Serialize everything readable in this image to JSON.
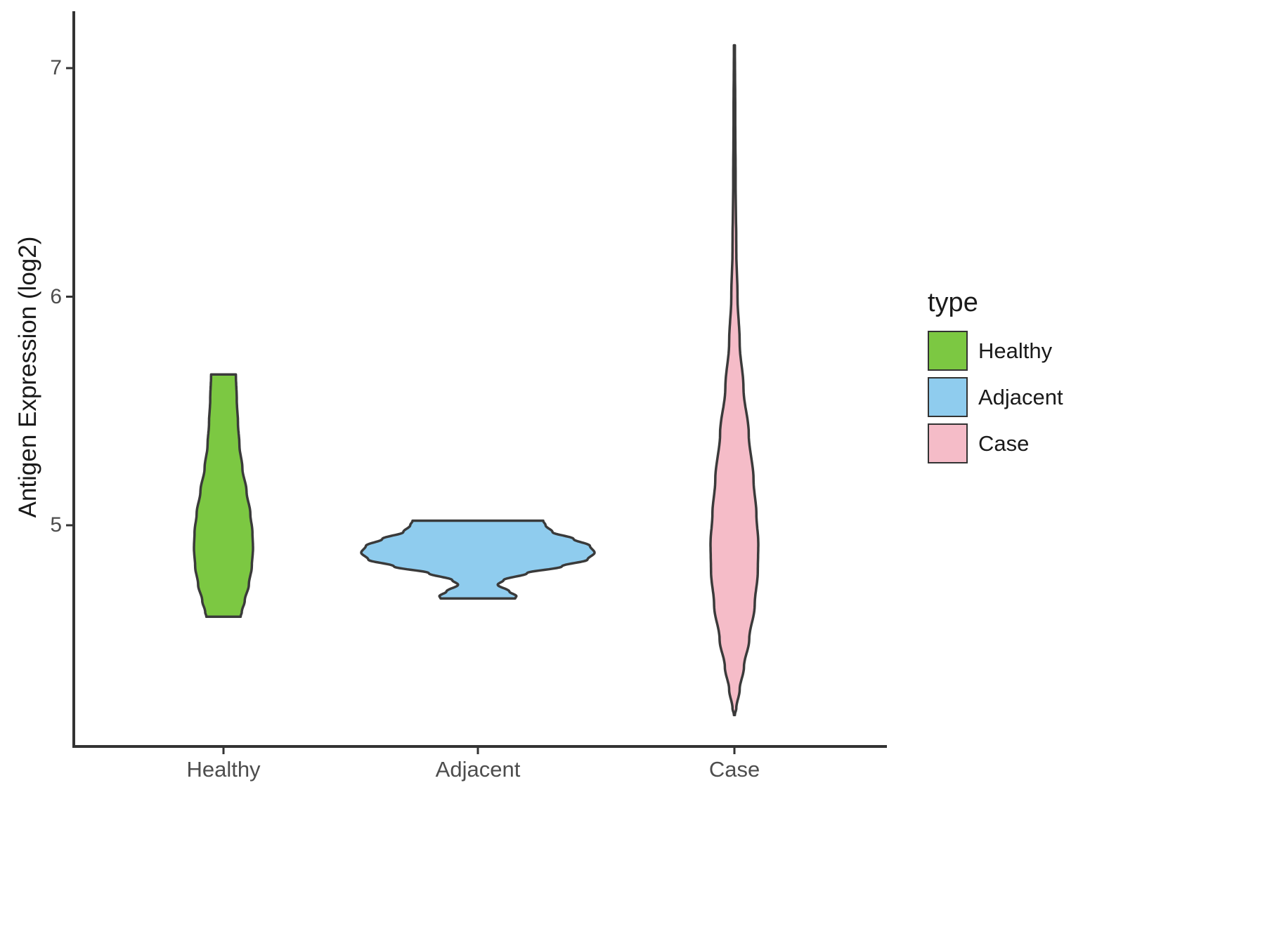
{
  "chart_data": {
    "type": "violin",
    "title": "",
    "xlabel": "",
    "ylabel": "Antigen Expression (log2)",
    "categories": [
      "Healthy",
      "Adjacent",
      "Case"
    ],
    "yticks": [
      7,
      6,
      5
    ],
    "ylim": [
      4.0,
      7.25
    ],
    "grid": "off",
    "axis_color": "#333333",
    "outline_color": "#3A3A3A",
    "legend": {
      "title": "type",
      "position": "right"
    },
    "series": [
      {
        "name": "Healthy",
        "color": "#7CC842",
        "value_range": [
          4.6,
          5.66
        ],
        "flat_ends": true,
        "profile": [
          {
            "v": 5.66,
            "d": 0.42
          },
          {
            "v": 5.55,
            "d": 0.45
          },
          {
            "v": 5.45,
            "d": 0.49
          },
          {
            "v": 5.35,
            "d": 0.54
          },
          {
            "v": 5.25,
            "d": 0.64
          },
          {
            "v": 5.15,
            "d": 0.78
          },
          {
            "v": 5.05,
            "d": 0.91
          },
          {
            "v": 4.97,
            "d": 0.98
          },
          {
            "v": 4.9,
            "d": 1.0
          },
          {
            "v": 4.82,
            "d": 0.96
          },
          {
            "v": 4.74,
            "d": 0.86
          },
          {
            "v": 4.67,
            "d": 0.72
          },
          {
            "v": 4.62,
            "d": 0.62
          },
          {
            "v": 4.6,
            "d": 0.58
          }
        ]
      },
      {
        "name": "Adjacent",
        "color": "#8FCCEE",
        "value_range": [
          4.68,
          5.02
        ],
        "flat_ends": true,
        "profile": [
          {
            "v": 5.02,
            "d": 0.56
          },
          {
            "v": 5.0,
            "d": 0.58
          },
          {
            "v": 4.97,
            "d": 0.64
          },
          {
            "v": 4.94,
            "d": 0.82
          },
          {
            "v": 4.91,
            "d": 0.96
          },
          {
            "v": 4.88,
            "d": 1.0
          },
          {
            "v": 4.85,
            "d": 0.94
          },
          {
            "v": 4.82,
            "d": 0.72
          },
          {
            "v": 4.79,
            "d": 0.42
          },
          {
            "v": 4.76,
            "d": 0.22
          },
          {
            "v": 4.74,
            "d": 0.17
          },
          {
            "v": 4.71,
            "d": 0.27
          },
          {
            "v": 4.69,
            "d": 0.33
          },
          {
            "v": 4.68,
            "d": 0.32
          }
        ]
      },
      {
        "name": "Case",
        "color": "#F5BCC8",
        "value_range": [
          4.17,
          7.1
        ],
        "flat_ends": false,
        "profile": [
          {
            "v": 7.1,
            "d": 0.02
          },
          {
            "v": 6.8,
            "d": 0.035
          },
          {
            "v": 6.5,
            "d": 0.05
          },
          {
            "v": 6.2,
            "d": 0.08
          },
          {
            "v": 6.0,
            "d": 0.13
          },
          {
            "v": 5.8,
            "d": 0.22
          },
          {
            "v": 5.6,
            "d": 0.38
          },
          {
            "v": 5.4,
            "d": 0.6
          },
          {
            "v": 5.2,
            "d": 0.8
          },
          {
            "v": 5.05,
            "d": 0.92
          },
          {
            "v": 4.92,
            "d": 1.0
          },
          {
            "v": 4.8,
            "d": 0.98
          },
          {
            "v": 4.65,
            "d": 0.85
          },
          {
            "v": 4.5,
            "d": 0.62
          },
          {
            "v": 4.38,
            "d": 0.4
          },
          {
            "v": 4.28,
            "d": 0.22
          },
          {
            "v": 4.2,
            "d": 0.08
          },
          {
            "v": 4.17,
            "d": 0.02
          }
        ]
      }
    ]
  }
}
